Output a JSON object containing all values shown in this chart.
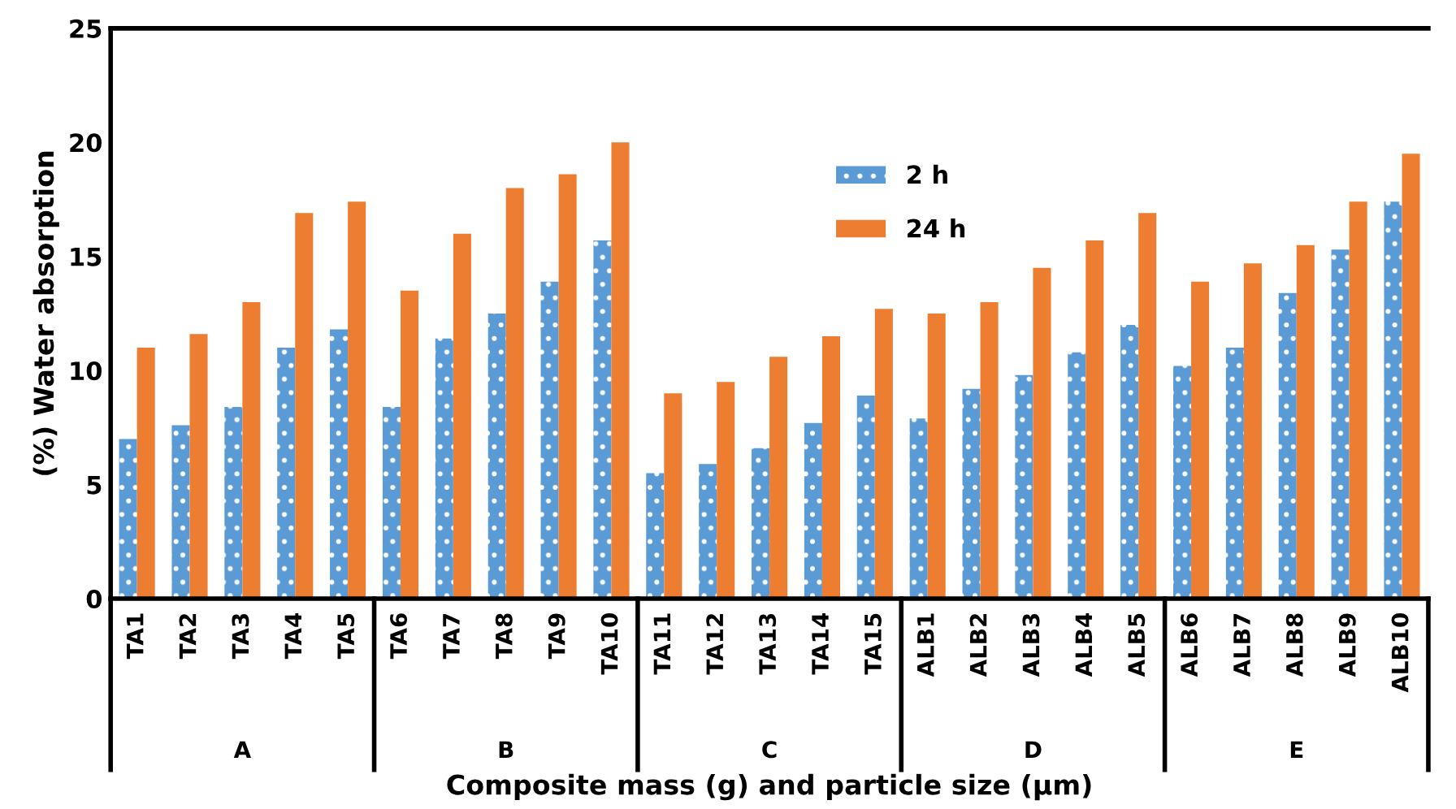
{
  "chart_data": {
    "type": "bar",
    "xlabel": "Composite mass (g) and particle size (µm)",
    "ylabel": "(%) Water absorption",
    "categories": [
      "TA1",
      "TA2",
      "TA3",
      "TA4",
      "TA5",
      "TA6",
      "TA7",
      "TA8",
      "TA9",
      "TA10",
      "TA11",
      "TA12",
      "TA13",
      "TA14",
      "TA15",
      "ALB1",
      "ALB2",
      "ALB3",
      "ALB4",
      "ALB5",
      "ALB6",
      "ALB7",
      "ALB8",
      "ALB9",
      "ALB10"
    ],
    "series": [
      {
        "name": "2 h",
        "color": "#5b9bd5",
        "values": [
          7.0,
          7.6,
          8.4,
          11.0,
          11.8,
          8.4,
          11.4,
          12.5,
          13.9,
          15.7,
          5.5,
          5.9,
          6.6,
          7.7,
          8.9,
          7.9,
          9.2,
          9.8,
          10.8,
          12.0,
          10.2,
          11.0,
          13.4,
          15.3,
          17.4
        ]
      },
      {
        "name": "24 h",
        "color": "#ed7d31",
        "values": [
          11.0,
          11.6,
          13.0,
          16.9,
          17.4,
          13.5,
          16.0,
          18.0,
          18.6,
          20.0,
          9.0,
          9.5,
          10.6,
          11.5,
          12.7,
          12.5,
          13.0,
          14.5,
          15.7,
          16.9,
          13.9,
          14.7,
          15.5,
          17.4,
          19.5
        ]
      }
    ],
    "annotations": [
      "A",
      "B",
      "C",
      "D",
      "E"
    ],
    "ylim": [
      0,
      25
    ],
    "yticks": [
      0,
      5,
      10,
      15,
      20,
      25
    ],
    "grid": false,
    "legend": "top center"
  }
}
